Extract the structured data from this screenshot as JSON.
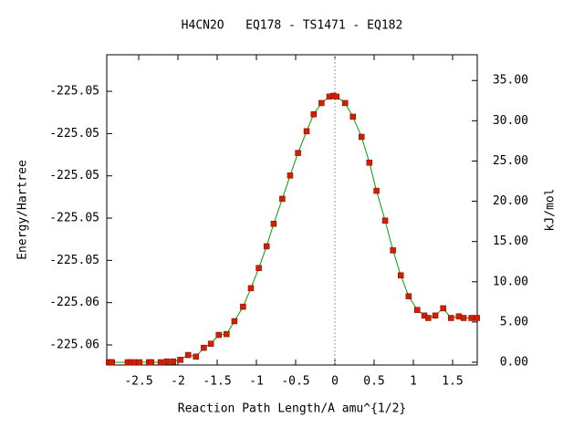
{
  "chart_data": {
    "type": "line",
    "title": "H4CN2O   EQ178 - TS1471 - EQ182",
    "xlabel": "Reaction Path Length/A amu^{1/2}",
    "ylabel": "Energy/Hartree",
    "y2label": "kJ/mol",
    "x": [
      -2.88,
      -2.86,
      -2.84,
      -2.64,
      -2.6,
      -2.56,
      -2.49,
      -2.37,
      -2.34,
      -2.22,
      -2.14,
      -2.06,
      -1.97,
      -1.87,
      -1.77,
      -1.67,
      -1.58,
      -1.48,
      -1.38,
      -1.28,
      -1.17,
      -1.07,
      -0.97,
      -0.87,
      -0.78,
      -0.67,
      -0.57,
      -0.47,
      -0.36,
      -0.27,
      -0.17,
      -0.07,
      -0.02,
      0.02,
      0.13,
      0.23,
      0.34,
      0.44,
      0.53,
      0.64,
      0.74,
      0.84,
      0.94,
      1.05,
      1.14,
      1.19,
      1.28,
      1.38,
      1.48,
      1.58,
      1.64,
      1.74,
      1.81
    ],
    "series": [
      {
        "axis": "y2",
        "color": "#00a000",
        "marker_color": "#d02000",
        "values": [
          0,
          0,
          0,
          0,
          0,
          0,
          0,
          0,
          0,
          0,
          0.1,
          0.1,
          0.3,
          0.9,
          0.7,
          1.8,
          2.3,
          3.4,
          3.5,
          5.1,
          6.9,
          9.2,
          11.7,
          14.4,
          17.2,
          20.3,
          23.2,
          26.0,
          28.7,
          30.8,
          32.2,
          33.0,
          33.1,
          33.0,
          32.2,
          30.5,
          28.0,
          24.8,
          21.3,
          17.6,
          13.9,
          10.8,
          8.2,
          6.5,
          5.8,
          5.5,
          5.8,
          6.7,
          5.5,
          5.7,
          5.5,
          5.5,
          5.5
        ]
      }
    ],
    "xlim": [
      -2.907,
      1.814
    ],
    "xticks": [
      -2.5,
      -2,
      -1.5,
      -1,
      -0.5,
      0,
      0.5,
      1,
      1.5
    ],
    "ylim": [
      -225.05895,
      -225.04427
    ],
    "yticks": [
      {
        "value": -225.046,
        "label": "-225.05"
      },
      {
        "value": -225.048,
        "label": "-225.05"
      },
      {
        "value": -225.05,
        "label": "-225.05"
      },
      {
        "value": -225.052,
        "label": "-225.05"
      },
      {
        "value": -225.054,
        "label": "-225.05"
      },
      {
        "value": -225.056,
        "label": "-225.06"
      },
      {
        "value": -225.058,
        "label": "-225.06"
      }
    ],
    "y2lim": [
      -0.34,
      38.2
    ],
    "y2ticks": [
      {
        "value": 0,
        "label": "0.00"
      },
      {
        "value": 5,
        "label": "5.00"
      },
      {
        "value": 10,
        "label": "10.00"
      },
      {
        "value": 15,
        "label": "15.00"
      },
      {
        "value": 20,
        "label": "20.00"
      },
      {
        "value": 25,
        "label": "25.00"
      },
      {
        "value": 30,
        "label": "30.00"
      },
      {
        "value": 35,
        "label": "35.00"
      }
    ]
  }
}
